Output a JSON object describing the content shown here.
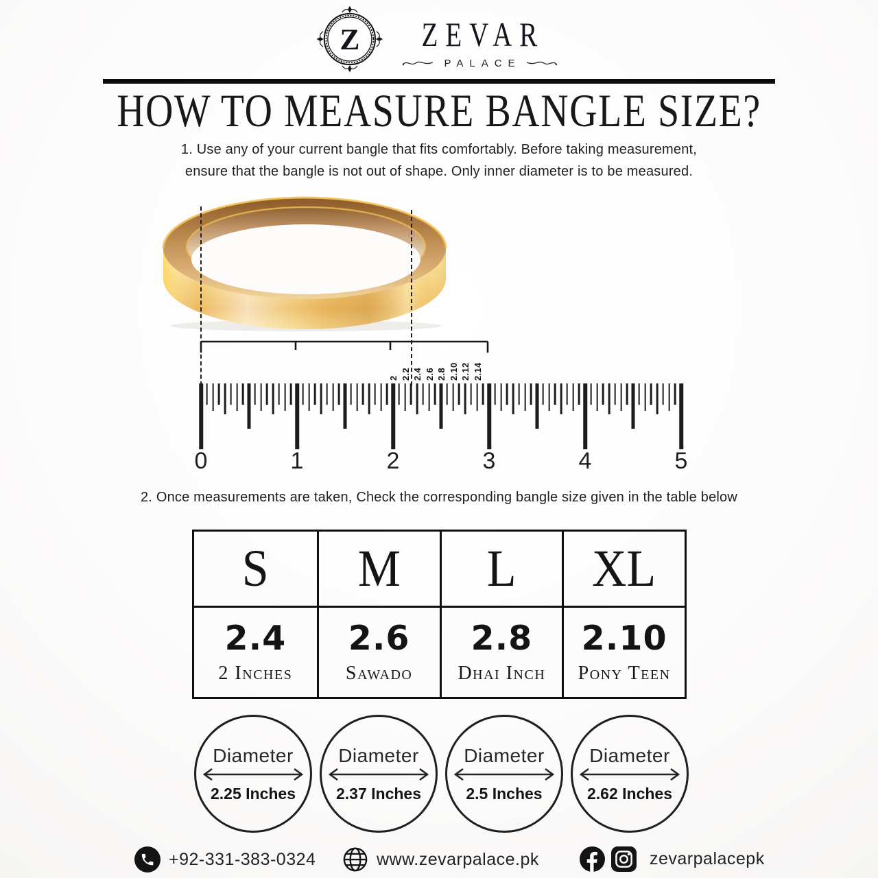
{
  "brand": {
    "monogram": "Z",
    "name": "ZEVAR",
    "subname": "PALACE"
  },
  "title": "HOW TO MEASURE BANGLE SIZE?",
  "steps": {
    "step1_line1": "1. Use any of your current bangle that fits comfortably. Before taking measurement,",
    "step1_line2": "ensure that the bangle is not out of shape. Only inner diameter is to be measured.",
    "step2": "2. Once measurements are taken, Check the corresponding bangle size given in the table below"
  },
  "ruler": {
    "inch_numbers": [
      "0",
      "1",
      "2",
      "3",
      "4",
      "5"
    ],
    "bangle_size_labels": [
      "2",
      "2.2",
      "2.4",
      "2.6",
      "2.8",
      "2.10",
      "2.12",
      "2.14"
    ]
  },
  "size_table": {
    "columns": [
      {
        "size": "S",
        "value": "2.4",
        "label": "2 Inches"
      },
      {
        "size": "M",
        "value": "2.6",
        "label": "Sawado"
      },
      {
        "size": "L",
        "value": "2.8",
        "label": "Dhai Inch"
      },
      {
        "size": "XL",
        "value": "2.10",
        "label": "Pony Teen"
      }
    ]
  },
  "diameter_circles": {
    "label": "Diameter",
    "items": [
      {
        "value": "2.25 Inches"
      },
      {
        "value": "2.37 Inches"
      },
      {
        "value": "2.5 Inches"
      },
      {
        "value": "2.62 Inches"
      }
    ]
  },
  "footer": {
    "phone": "+92-331-383-0324",
    "website": "www.zevarpalace.pk",
    "social_handle": "zevarpalacepk"
  },
  "colors": {
    "gold": "#e8b455",
    "ink": "#111111"
  }
}
